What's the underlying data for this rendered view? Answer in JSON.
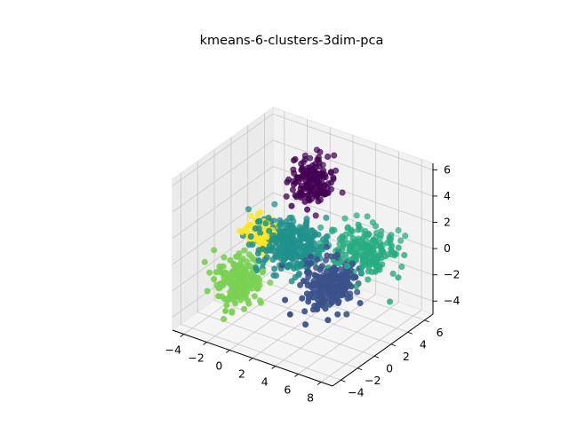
{
  "chart_data": {
    "type": "scatter",
    "subtype": "3d-scatter",
    "title": "kmeans-6-clusters-3dim-pca",
    "xlabel": "",
    "ylabel": "",
    "zlabel": "",
    "xlim": [
      -5,
      9
    ],
    "ylim": [
      -5,
      7
    ],
    "zlim": [
      -5,
      6.5
    ],
    "x_ticks": [
      "−4",
      "−2",
      "0",
      "2",
      "4",
      "6",
      "8"
    ],
    "y_ticks": [
      "−4",
      "−2",
      "0",
      "2",
      "4",
      "6"
    ],
    "z_ticks": [
      "−4",
      "−2",
      "0",
      "2",
      "4",
      "6"
    ],
    "grid": true,
    "legend": "none",
    "colormap": "viridis",
    "clusters": [
      {
        "color": "#440154",
        "center": [
          1.2,
          3.2,
          4.5
        ],
        "spread": [
          0.8,
          0.8,
          0.8
        ],
        "count": 160
      },
      {
        "color": "#3b528b",
        "center": [
          4.5,
          0.8,
          -1.2
        ],
        "spread": [
          0.9,
          1.0,
          0.8
        ],
        "count": 220
      },
      {
        "color": "#21918c",
        "center": [
          0.5,
          1.5,
          0.2
        ],
        "spread": [
          1.3,
          1.0,
          0.9
        ],
        "count": 320
      },
      {
        "color": "#27ad81",
        "center": [
          5.5,
          3.5,
          0.3
        ],
        "spread": [
          1.3,
          0.9,
          0.8
        ],
        "count": 220
      },
      {
        "color": "#7ad151",
        "center": [
          -1.8,
          -1.5,
          -2.0
        ],
        "spread": [
          0.8,
          0.8,
          0.9
        ],
        "count": 180
      },
      {
        "color": "#fde725",
        "center": [
          -1.5,
          1.0,
          0.8
        ],
        "spread": [
          0.6,
          0.6,
          0.6
        ],
        "count": 110
      }
    ]
  }
}
